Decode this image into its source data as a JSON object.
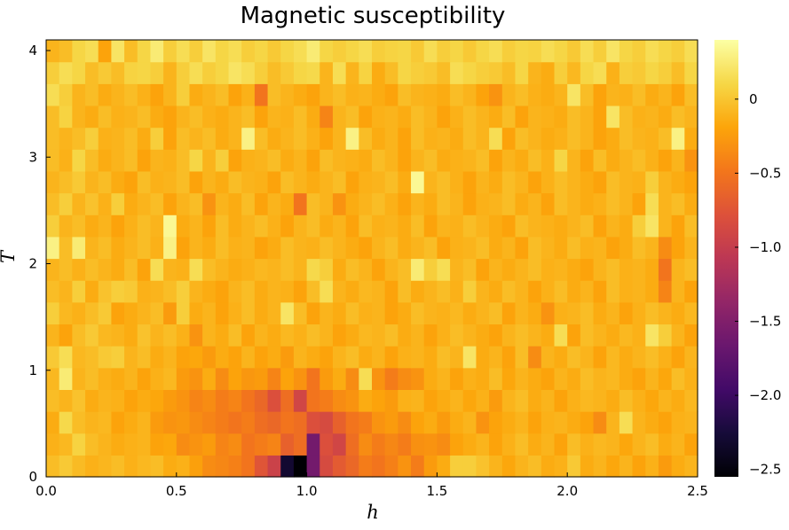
{
  "chart_data": {
    "type": "heatmap",
    "title": "Magnetic susceptibility",
    "xlabel": "h",
    "ylabel": "T",
    "xlim": [
      0.0,
      2.5
    ],
    "ylim": [
      0.0,
      4.1
    ],
    "x_ticks": [
      "0.0",
      "0.5",
      "1.0",
      "1.5",
      "2.0",
      "2.5"
    ],
    "x_tick_values": [
      0.0,
      0.5,
      1.0,
      1.5,
      2.0,
      2.5
    ],
    "y_ticks": [
      "0",
      "1",
      "2",
      "3",
      "4"
    ],
    "y_tick_values": [
      0,
      1,
      2,
      3,
      4
    ],
    "grid": false,
    "colormap": "inferno",
    "colorbar": {
      "range": [
        -2.55,
        0.4
      ],
      "tick_labels": [
        "0",
        "−0.5",
        "−1.0",
        "−1.5",
        "−2.0",
        "−2.5"
      ],
      "tick_values": [
        0,
        -0.5,
        -1.0,
        -1.5,
        -2.0,
        -2.5
      ]
    },
    "grid_size": {
      "nx": 50,
      "ny": 20
    },
    "cell_values_note": "",
    "z_rows_bottom_to_top": [
      "-0.05 0.02 -0.06 -0.12 -0.09 -0.05 -0.12 -0.08 -0.05 -0.15 -0.12 -0.22 -0.35 -0.38 -0.42 -0.5 -0.75 -0.95 -2.3 -2.55 -1.6 -0.85 -0.7 -0.6 -0.45 -0.5 -0.42 -0.3 -0.45 -0.25 -0.15 0.05 0.05 -0.02 -0.1 -0.18 -0.1 -0.05 -0.15 -0.12 0.02 -0.15 -0.1 -0.18 -0.1 -0.2 -0.12 -0.25 -0.15 -0.1",
      "-0.12 -0.08 0.08 -0.05 -0.1 -0.15 -0.12 -0.1 -0.2 -0.18 -0.35 -0.3 -0.25 -0.4 -0.35 -0.5 -0.45 -0.4 -0.65 -0.55 -1.6 -0.8 -0.9 -0.55 -0.35 -0.45 -0.38 -0.45 -0.32 -0.3 -0.35 -0.2 -0.15 -0.1 -0.2 -0.12 -0.05 -0.15 -0.1 -0.2 -0.05 -0.12 -0.08 -0.1 -0.18 -0.1 -0.05 -0.15 -0.1 -0.2",
      "-0.15 0.12 -0.05 -0.1 -0.08 -0.2 -0.15 -0.1 -0.25 -0.3 -0.28 -0.35 -0.4 -0.45 -0.5 -0.45 -0.55 -0.6 -0.5 -0.55 -0.8 -0.85 -0.65 -0.5 -0.45 -0.3 -0.25 -0.35 -0.2 -0.15 -0.25 -0.15 -0.1 -0.3 -0.2 -0.15 -0.1 -0.2 -0.12 -0.1 -0.15 -0.2 -0.35 -0.1 0.15 -0.1 -0.15 -0.2 -0.12 -0.1",
      "-0.05 -0.1 -0.02 -0.15 -0.1 -0.12 -0.2 -0.15 -0.18 -0.25 -0.3 -0.4 -0.35 -0.45 -0.4 -0.5 -0.6 -0.8 -0.55 -0.9 -0.5 -0.45 -0.35 -0.3 -0.15 -0.2 -0.25 -0.12 -0.1 -0.2 -0.15 -0.1 -0.18 -0.12 -0.25 -0.1 -0.05 -0.15 -0.1 -0.2 -0.12 -0.08 -0.1 -0.15 -0.05 -0.12 -0.18 -0.1 -0.15 -0.08",
      "-0.08 0.25 -0.1 -0.05 -0.12 -0.15 -0.1 -0.2 -0.12 -0.08 -0.25 -0.3 -0.15 -0.35 -0.2 -0.28 -0.25 -0.4 -0.2 -0.3 -0.5 -0.25 -0.15 -0.35 0.15 -0.3 -0.45 -0.35 -0.3 -0.15 -0.1 -0.2 -0.12 -0.15 -0.05 -0.18 -0.1 -0.15 -0.2 -0.1 -0.15 -0.05 -0.1 -0.08 -0.15 -0.2 -0.1 -0.18 -0.05 -0.12",
      "0.02 0.15 -0.08 -0.05 0.02 0.05 -0.1 -0.05 -0.15 -0.1 -0.2 -0.18 -0.25 -0.15 -0.2 -0.1 -0.2 -0.15 -0.25 -0.1 -0.15 -0.2 -0.1 -0.05 -0.15 -0.1 -0.2 -0.12 -0.1 -0.15 -0.05 -0.1 0.2 -0.15 -0.1 -0.2 -0.05 -0.35 -0.1 -0.15 -0.05 -0.1 -0.2 -0.08 -0.15 -0.1 -0.05 -0.12 -0.2 -0.1",
      "-0.1 -0.2 -0.05 0.02 -0.08 -0.1 -0.15 -0.02 -0.1 -0.05 -0.12 -0.3 -0.1 -0.15 -0.05 -0.2 -0.1 -0.15 -0.08 -0.12 -0.05 -0.1 -0.2 -0.15 -0.08 -0.1 -0.05 -0.15 -0.1 -0.2 -0.12 -0.05 -0.1 -0.15 -0.2 -0.1 -0.05 -0.1 -0.15 0.15 -0.2 -0.05 -0.1 -0.15 -0.08 -0.12 0.2 0.05 -0.1 -0.2",
      "0.05 -0.08 -0.12 -0.05 0.02 -0.2 -0.15 -0.1 -0.05 -0.25 0.05 -0.15 -0.1 -0.2 -0.12 -0.05 -0.15 -0.1 0.2 -0.05 -0.2 -0.1 -0.15 -0.05 -0.12 -0.1 -0.2 -0.15 -0.05 -0.1 -0.12 -0.08 -0.15 -0.1 -0.05 -0.2 -0.1 -0.15 -0.3 -0.12 -0.1 -0.05 -0.15 -0.1 -0.2 -0.12 -0.05 -0.1 -0.15 -0.08",
      "-0.05 -0.1 0.05 -0.15 -0.02 0.05 0.02 -0.12 -0.1 -0.05 0.05 -0.1 -0.15 -0.2 -0.1 -0.05 -0.15 -0.1 -0.12 -0.2 -0.05 0.15 -0.1 -0.15 -0.08 -0.1 -0.2 -0.05 -0.15 -0.1 -0.05 -0.12 0.05 -0.1 -0.15 -0.05 -0.1 -0.2 -0.12 -0.05 -0.15 -0.1 -0.2 -0.05 -0.12 -0.1 -0.15 -0.4 -0.1 -0.2",
      "-0.1 -0.05 -0.12 -0.05 -0.1 -0.15 -0.05 -0.2 0.15 -0.1 -0.12 0.15 -0.05 -0.1 -0.15 -0.12 -0.08 -0.1 -0.05 -0.1 0.12 0.05 -0.15 -0.05 -0.1 -0.2 -0.1 -0.05 0.25 0.05 0.15 -0.1 -0.05 -0.2 -0.1 -0.15 -0.1 -0.05 -0.12 -0.1 -0.15 -0.2 -0.1 -0.05 -0.12 -0.1 -0.15 -0.5 -0.1 -0.05",
      "0.3 -0.05 0.25 -0.1 -0.05 -0.15 -0.1 -0.05 -0.12 0.3 -0.2 -0.1 -0.15 -0.05 -0.12 -0.1 -0.2 -0.15 -0.05 -0.1 -0.12 -0.05 -0.1 -0.15 -0.2 -0.1 -0.05 -0.15 -0.1 -0.05 -0.2 -0.12 -0.1 -0.05 -0.15 -0.1 -0.2 -0.05 -0.1 -0.15 -0.05 -0.12 -0.1 -0.2 -0.15 -0.05 -0.1 -0.35 -0.2 -0.1",
      "0.05 -0.1 -0.05 -0.15 -0.1 -0.2 -0.12 -0.05 -0.1 0.35 -0.15 -0.1 -0.2 -0.05 -0.15 -0.1 -0.05 -0.12 -0.2 -0.1 -0.05 -0.15 -0.1 -0.2 -0.05 -0.12 -0.1 -0.15 -0.05 -0.2 -0.1 -0.12 -0.05 -0.1 -0.15 -0.2 -0.05 -0.1 -0.12 -0.15 -0.1 -0.05 -0.2 -0.1 -0.15 0.05 0.2 -0.1 -0.2 -0.05",
      "-0.05 0.05 -0.1 -0.02 -0.12 0.05 -0.15 -0.1 -0.05 -0.2 -0.1 -0.05 -0.3 -0.1 -0.15 -0.05 -0.2 -0.1 -0.15 -0.5 -0.05 -0.1 -0.3 -0.15 -0.1 -0.05 -0.12 -0.2 -0.1 -0.15 -0.05 -0.1 -0.2 -0.12 -0.1 -0.05 -0.15 -0.1 -0.2 -0.05 -0.1 -0.15 -0.12 -0.05 -0.1 -0.2 0.15 -0.1 -0.05 -0.15",
      "-0.1 -0.05 0.02 -0.1 -0.05 -0.15 -0.2 -0.05 -0.12 -0.1 -0.05 -0.2 -0.1 -0.15 -0.05 -0.1 -0.12 -0.2 -0.05 -0.1 -0.15 -0.1 -0.05 -0.2 -0.12 -0.1 -0.05 -0.15 0.35 -0.1 -0.05 -0.12 -0.2 -0.1 -0.15 -0.05 -0.1 -0.2 -0.12 -0.05 -0.1 -0.15 -0.2 -0.05 -0.1 -0.12 0.05 -0.1 -0.15 -0.2",
      "-0.05 -0.12 0.1 -0.05 -0.15 -0.1 -0.05 -0.2 -0.1 -0.12 -0.05 0.1 -0.1 0.05 -0.2 -0.12 -0.1 -0.05 -0.15 -0.1 -0.2 -0.05 -0.1 -0.12 -0.15 -0.05 -0.1 -0.2 -0.1 -0.05 -0.15 -0.12 -0.1 -0.05 -0.2 -0.1 -0.15 -0.05 -0.12 0.1 -0.1 -0.2 -0.05 -0.15 -0.1 -0.05 -0.12 -0.2 -0.1 -0.3",
      "-0.05 -0.1 -0.05 0.05 -0.12 -0.1 -0.05 -0.15 0.05 -0.2 -0.05 -0.1 -0.05 -0.15 -0.1 0.3 -0.05 -0.15 -0.1 -0.05 -0.12 -0.2 -0.1 0.3 -0.05 -0.15 -0.1 -0.2 -0.05 -0.12 -0.1 -0.15 -0.05 -0.1 0.15 -0.2 -0.05 -0.1 -0.15 -0.12 -0.05 -0.1 -0.2 -0.15 -0.05 -0.1 -0.12 -0.05 0.3 -0.15",
      "-0.05 0.08 -0.1 -0.15 -0.05 -0.12 -0.1 -0.05 -0.15 -0.2 -0.1 -0.05 -0.12 -0.15 -0.1 -0.05 -0.2 -0.1 -0.12 -0.05 -0.15 -0.4 -0.1 -0.05 -0.2 -0.12 -0.1 -0.15 -0.05 -0.1 -0.2 -0.12 -0.05 -0.1 -0.15 -0.05 -0.2 -0.1 -0.12 -0.15 -0.05 -0.1 -0.2 0.2 -0.05 -0.12 -0.1 -0.15 -0.05 -0.1",
      "0.15 0.05 -0.1 -0.05 -0.15 -0.1 -0.05 -0.12 -0.2 -0.1 0.05 -0.15 -0.1 -0.05 -0.2 -0.12 -0.5 -0.05 -0.1 -0.15 -0.2 -0.1 -0.05 -0.12 -0.1 -0.15 -0.2 -0.05 -0.1 -0.12 -0.15 -0.05 -0.1 -0.2 -0.3 -0.1 -0.05 -0.12 -0.15 -0.1 0.2 -0.05 -0.2 -0.1 -0.12 -0.05 -0.15 -0.1 -0.2 -0.05",
      "0.05 0.15 0.1 -0.05 0.02 -0.05 0.08 0.1 0.05 -0.1 0.05 0.15 0.05 0.1 0.2 0.15 0.05 -0.05 0.02 0.1 0.12 -0.1 0.15 -0.1 0.08 -0.15 -0.05 0.1 0.05 0.02 -0.05 0.15 0.1 0.05 0.02 -0.05 0.1 -0.1 -0.15 0.05 -0.08 0.1 0.15 -0.12 0.05 0.02 0.1 0.05 -0.05 0.1",
      "-0.1 -0.05 0.1 0.15 -0.2 0.2 -0.05 0.1 0.25 0.05 0.15 0.05 0.2 0.1 0.15 0.05 0.1 0.02 0.1 0.15 0.25 0.1 0.05 0.1 0.15 0.05 0.08 0.1 0.02 0.15 0.05 0.1 0.02 0.1 0.15 0.05 0.1 0.08 0.15 0.1 0.02 0.15 0.05 0.2 0.1 0.05 0.15 0.1 0.05 0.15"
    ]
  }
}
